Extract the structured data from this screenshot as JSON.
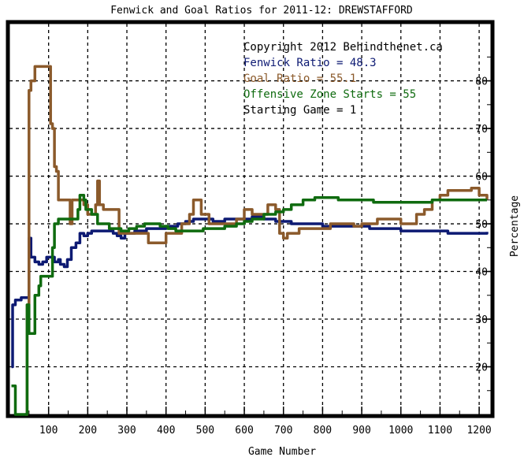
{
  "chart_data": {
    "type": "line",
    "title": "Fenwick and Goal Ratios for 2011-12: DREWSTAFFORD",
    "xlabel": "Game Number",
    "ylabel": "Percentage",
    "xlim": [
      0,
      1230
    ],
    "ylim": [
      10,
      92
    ],
    "x_ticks": [
      100,
      200,
      300,
      400,
      500,
      600,
      700,
      800,
      900,
      1000,
      1100,
      1200
    ],
    "y_ticks": [
      20,
      30,
      40,
      50,
      60,
      70,
      80
    ],
    "grid": true,
    "legend_position": "top-right",
    "legend": [
      {
        "text": "Copyright 2012 Behindthenet.ca",
        "color": "#000000"
      },
      {
        "text": "Fenwick Ratio = 48.3",
        "color": "#0d1a73"
      },
      {
        "text": "Goal Ratio = 55.1",
        "color": "#8b5a2b"
      },
      {
        "text": "Offensive Zone Starts = 55",
        "color": "#0f6b0f"
      },
      {
        "text": "Starting Game = 1",
        "color": "#000000"
      }
    ],
    "series": [
      {
        "name": "Fenwick Ratio",
        "color": "#0d1a73",
        "points": [
          [
            5,
            20
          ],
          [
            8,
            33
          ],
          [
            15,
            34
          ],
          [
            30,
            34.5
          ],
          [
            45,
            34.5
          ],
          [
            50,
            47
          ],
          [
            55,
            43
          ],
          [
            65,
            42
          ],
          [
            75,
            41.5
          ],
          [
            85,
            42
          ],
          [
            95,
            43
          ],
          [
            105,
            43
          ],
          [
            115,
            42
          ],
          [
            125,
            42.5
          ],
          [
            130,
            41.5
          ],
          [
            140,
            41
          ],
          [
            148,
            42.5
          ],
          [
            158,
            45
          ],
          [
            170,
            46
          ],
          [
            180,
            48
          ],
          [
            190,
            47.5
          ],
          [
            200,
            48
          ],
          [
            210,
            48.5
          ],
          [
            230,
            48.5
          ],
          [
            250,
            48.5
          ],
          [
            265,
            48
          ],
          [
            275,
            47.5
          ],
          [
            285,
            47
          ],
          [
            295,
            48
          ],
          [
            320,
            48.5
          ],
          [
            350,
            49
          ],
          [
            380,
            49
          ],
          [
            400,
            49.5
          ],
          [
            430,
            50
          ],
          [
            450,
            50.5
          ],
          [
            470,
            51
          ],
          [
            500,
            51
          ],
          [
            520,
            50.5
          ],
          [
            550,
            51
          ],
          [
            580,
            51
          ],
          [
            620,
            51.5
          ],
          [
            650,
            51
          ],
          [
            680,
            50.5
          ],
          [
            700,
            50.5
          ],
          [
            720,
            50
          ],
          [
            760,
            50
          ],
          [
            800,
            49.5
          ],
          [
            840,
            49.5
          ],
          [
            880,
            49.5
          ],
          [
            920,
            49
          ],
          [
            960,
            49
          ],
          [
            1000,
            48.5
          ],
          [
            1040,
            48.5
          ],
          [
            1080,
            48.5
          ],
          [
            1120,
            48
          ],
          [
            1160,
            48
          ],
          [
            1190,
            48
          ],
          [
            1220,
            48.3
          ]
        ]
      },
      {
        "name": "Goal Ratio",
        "color": "#8b5a2b",
        "points": [
          [
            40,
            10
          ],
          [
            45,
            33
          ],
          [
            50,
            78
          ],
          [
            55,
            80
          ],
          [
            60,
            80
          ],
          [
            65,
            83
          ],
          [
            70,
            83
          ],
          [
            75,
            83
          ],
          [
            80,
            83
          ],
          [
            85,
            83
          ],
          [
            90,
            83
          ],
          [
            95,
            83
          ],
          [
            100,
            83
          ],
          [
            105,
            71
          ],
          [
            110,
            70
          ],
          [
            115,
            62
          ],
          [
            120,
            61
          ],
          [
            125,
            55
          ],
          [
            130,
            55
          ],
          [
            140,
            55
          ],
          [
            150,
            55
          ],
          [
            155,
            50
          ],
          [
            160,
            55
          ],
          [
            170,
            55
          ],
          [
            180,
            55
          ],
          [
            190,
            54
          ],
          [
            200,
            52
          ],
          [
            210,
            52
          ],
          [
            220,
            54
          ],
          [
            225,
            59
          ],
          [
            230,
            54
          ],
          [
            240,
            53
          ],
          [
            250,
            53
          ],
          [
            260,
            53
          ],
          [
            270,
            53
          ],
          [
            280,
            48
          ],
          [
            290,
            48
          ],
          [
            300,
            48
          ],
          [
            310,
            48
          ],
          [
            320,
            48
          ],
          [
            330,
            48
          ],
          [
            340,
            48
          ],
          [
            350,
            48
          ],
          [
            355,
            46
          ],
          [
            370,
            46
          ],
          [
            390,
            46
          ],
          [
            400,
            48
          ],
          [
            420,
            48
          ],
          [
            440,
            50
          ],
          [
            460,
            52
          ],
          [
            470,
            55
          ],
          [
            480,
            55
          ],
          [
            490,
            52
          ],
          [
            500,
            52
          ],
          [
            510,
            50
          ],
          [
            520,
            50
          ],
          [
            540,
            50
          ],
          [
            560,
            50
          ],
          [
            580,
            51
          ],
          [
            600,
            53
          ],
          [
            610,
            53
          ],
          [
            620,
            52
          ],
          [
            640,
            52
          ],
          [
            660,
            54
          ],
          [
            680,
            53
          ],
          [
            690,
            48
          ],
          [
            700,
            47
          ],
          [
            710,
            48
          ],
          [
            740,
            49
          ],
          [
            780,
            49
          ],
          [
            800,
            49
          ],
          [
            820,
            50
          ],
          [
            850,
            50
          ],
          [
            880,
            49.5
          ],
          [
            900,
            50
          ],
          [
            920,
            50
          ],
          [
            940,
            51
          ],
          [
            980,
            51
          ],
          [
            1000,
            50
          ],
          [
            1020,
            50
          ],
          [
            1040,
            52
          ],
          [
            1060,
            53
          ],
          [
            1080,
            55
          ],
          [
            1100,
            56
          ],
          [
            1120,
            57
          ],
          [
            1140,
            57
          ],
          [
            1160,
            57
          ],
          [
            1180,
            57.5
          ],
          [
            1200,
            56
          ],
          [
            1220,
            55.1
          ]
        ]
      },
      {
        "name": "Offensive Zone Starts",
        "color": "#0f6b0f",
        "points": [
          [
            5,
            16
          ],
          [
            10,
            16
          ],
          [
            15,
            10
          ],
          [
            40,
            10
          ],
          [
            45,
            33
          ],
          [
            50,
            27
          ],
          [
            55,
            27
          ],
          [
            60,
            27
          ],
          [
            65,
            35
          ],
          [
            70,
            35
          ],
          [
            75,
            37
          ],
          [
            80,
            39
          ],
          [
            90,
            39
          ],
          [
            100,
            39
          ],
          [
            110,
            45
          ],
          [
            115,
            50
          ],
          [
            125,
            51
          ],
          [
            135,
            51
          ],
          [
            145,
            51
          ],
          [
            155,
            51
          ],
          [
            165,
            51
          ],
          [
            175,
            53
          ],
          [
            180,
            56
          ],
          [
            190,
            55
          ],
          [
            195,
            53
          ],
          [
            205,
            53
          ],
          [
            210,
            52
          ],
          [
            215,
            52
          ],
          [
            225,
            50
          ],
          [
            235,
            50
          ],
          [
            255,
            49
          ],
          [
            285,
            48.5
          ],
          [
            305,
            49
          ],
          [
            325,
            49.5
          ],
          [
            345,
            50
          ],
          [
            365,
            50
          ],
          [
            385,
            49.5
          ],
          [
            405,
            49
          ],
          [
            425,
            48.5
          ],
          [
            445,
            48.5
          ],
          [
            475,
            48.5
          ],
          [
            495,
            49
          ],
          [
            520,
            49
          ],
          [
            550,
            49.5
          ],
          [
            580,
            50
          ],
          [
            600,
            50.5
          ],
          [
            620,
            51
          ],
          [
            650,
            52
          ],
          [
            680,
            52.5
          ],
          [
            700,
            53
          ],
          [
            720,
            54
          ],
          [
            750,
            55
          ],
          [
            780,
            55.5
          ],
          [
            810,
            55.5
          ],
          [
            840,
            55
          ],
          [
            870,
            55
          ],
          [
            900,
            55
          ],
          [
            930,
            54.5
          ],
          [
            960,
            54.5
          ],
          [
            1000,
            54.5
          ],
          [
            1040,
            54.5
          ],
          [
            1080,
            55
          ],
          [
            1120,
            55
          ],
          [
            1160,
            55
          ],
          [
            1190,
            55
          ],
          [
            1220,
            55
          ]
        ]
      }
    ]
  }
}
